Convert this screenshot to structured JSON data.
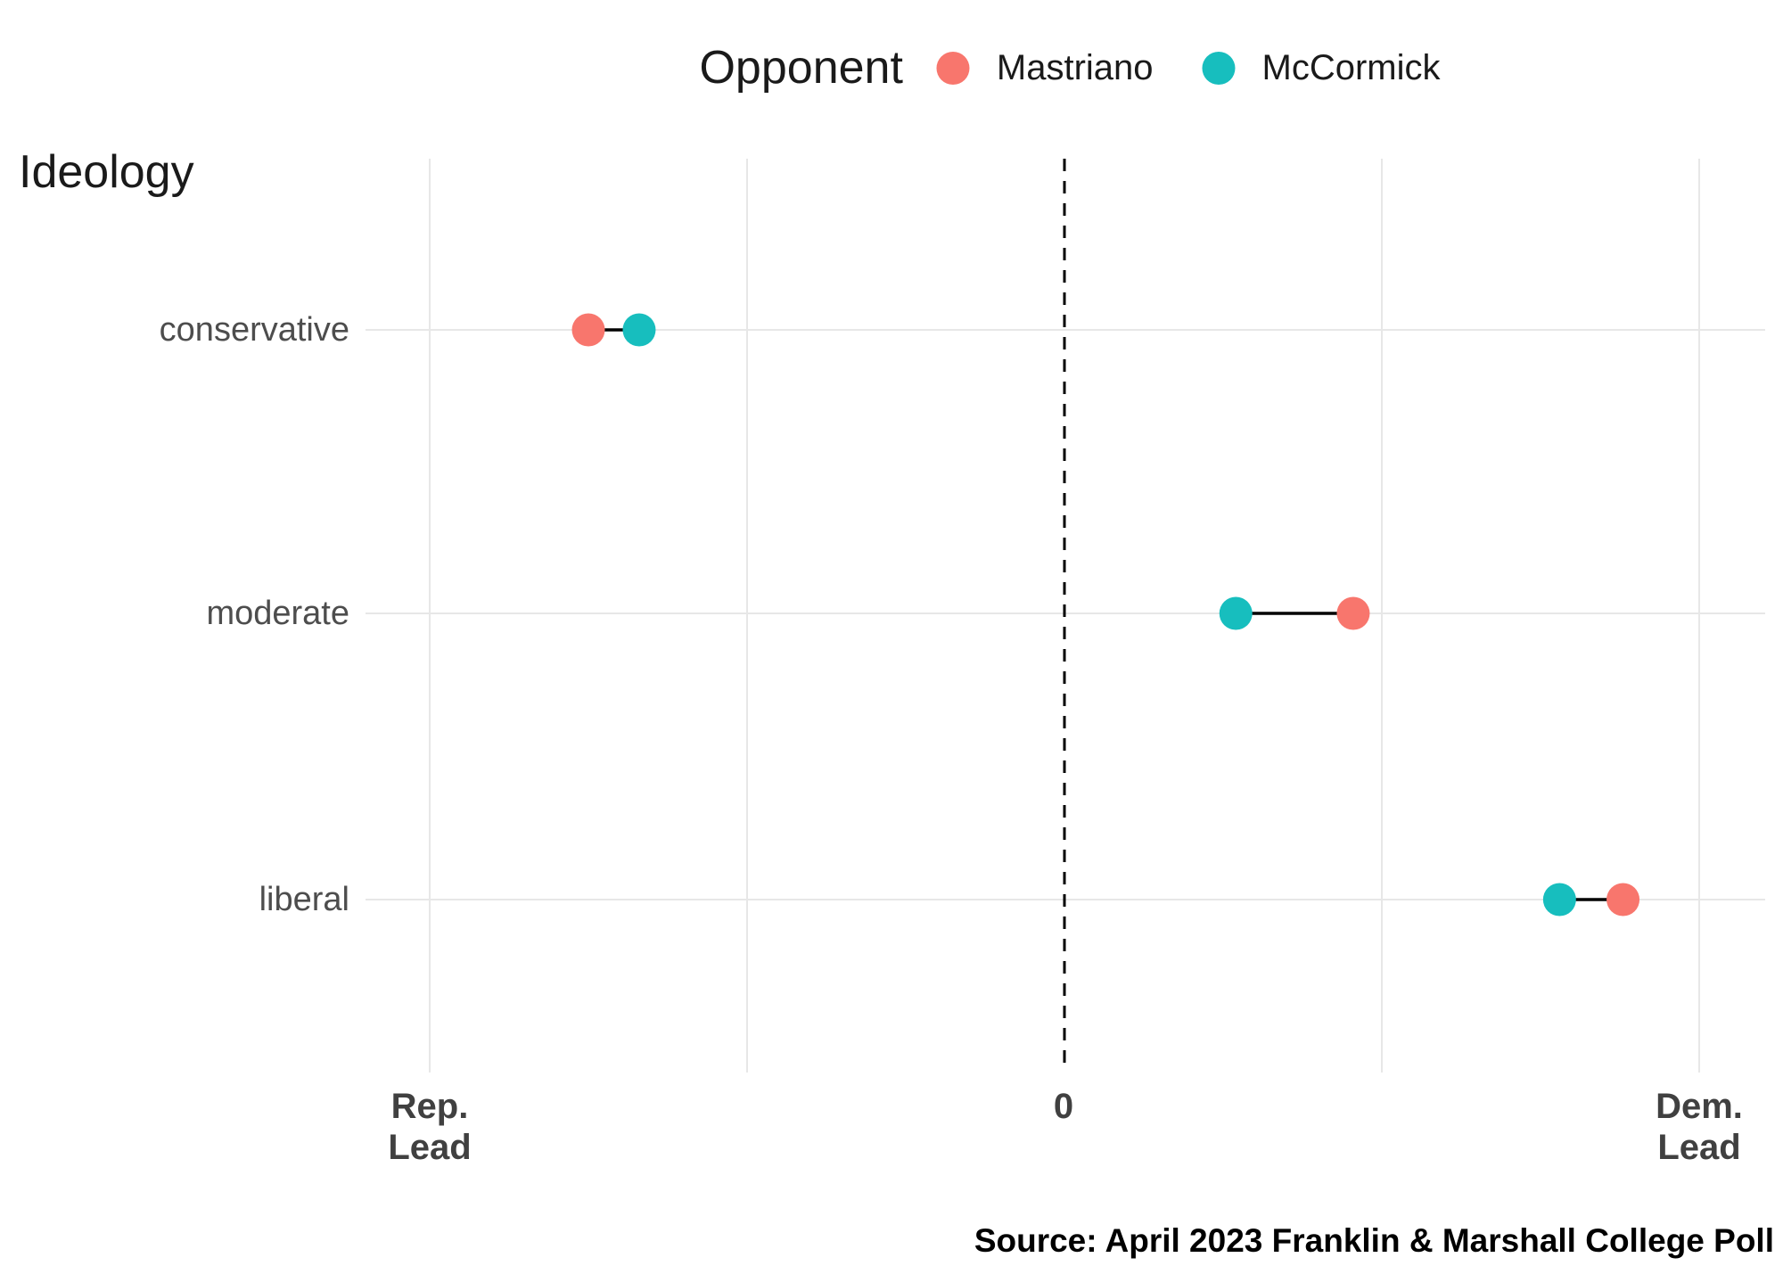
{
  "page": {
    "background": "#FFFFFF"
  },
  "chart_data": {
    "type": "dumbbell",
    "title": "",
    "legend": {
      "title": "Opponent",
      "position": "top-center",
      "entries": [
        {
          "label": "Mastriano",
          "color": "#F8766D"
        },
        {
          "label": "McCormick",
          "color": "#17BEBE"
        }
      ]
    },
    "y_axis": {
      "title": "Ideology",
      "categories": [
        "conservative",
        "moderate",
        "liberal"
      ]
    },
    "x_axis": {
      "tick_labels": [
        "Rep. Lead",
        "0",
        "Dem. Lead"
      ],
      "left_label_line1": "Rep.",
      "left_label_line2": "Lead",
      "zero_label": "0",
      "right_label_line1": "Dem.",
      "right_label_line2": "Lead",
      "zero_reference_line": "dashed-black-vertical",
      "gridlines_labeled": false,
      "units_note": "numeric gridlines unlabeled; values below are in gridline-spacing units, positive = Dem. lead, negative = Rep. lead",
      "xlim": [
        -2.2,
        2.25
      ],
      "grid": true
    },
    "categories": [
      "conservative",
      "moderate",
      "liberal"
    ],
    "series": [
      {
        "name": "Mastriano",
        "color": "#F8766D",
        "values": [
          -1.5,
          0.91,
          1.76
        ]
      },
      {
        "name": "McCormick",
        "color": "#17BEBE",
        "values": [
          -1.34,
          0.54,
          1.56
        ]
      }
    ],
    "connector_color": "#000000",
    "source": "Source: April 2023 Franklin & Marshall College Poll"
  }
}
